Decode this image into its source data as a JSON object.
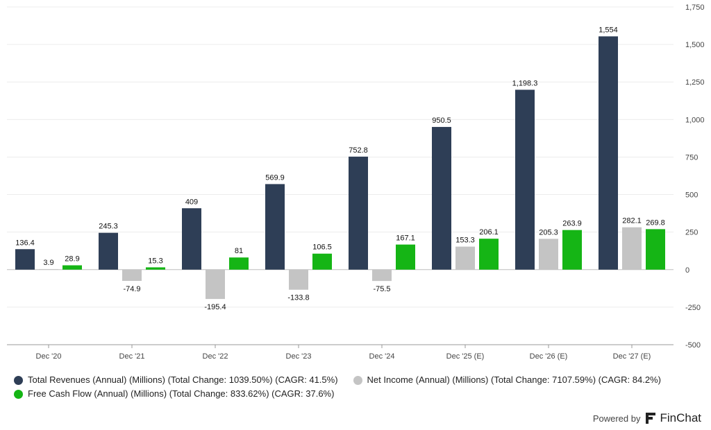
{
  "chart_data": {
    "type": "bar",
    "categories": [
      "Dec '20",
      "Dec '21",
      "Dec '22",
      "Dec '23",
      "Dec '24",
      "Dec '25 (E)",
      "Dec '26 (E)",
      "Dec '27 (E)"
    ],
    "series": [
      {
        "name": "Total Revenues (Annual) (Millions) (Total Change: 1039.50%) (CAGR: 41.5%)",
        "color": "#2e3e56",
        "values": [
          136.4,
          245.3,
          409,
          569.9,
          752.8,
          950.5,
          1198.3,
          1554
        ],
        "labels": [
          "136.4",
          "245.3",
          "409",
          "569.9",
          "752.8",
          "950.5",
          "1,198.3",
          "1,554"
        ]
      },
      {
        "name": "Net Income (Annual) (Millions) (Total Change: 7107.59%) (CAGR: 84.2%)",
        "color": "#c4c4c4",
        "values": [
          3.9,
          -74.9,
          -195.4,
          -133.8,
          -75.5,
          153.3,
          205.3,
          282.1
        ],
        "labels": [
          "3.9",
          "-74.9",
          "-195.4",
          "-133.8",
          "-75.5",
          "153.3",
          "205.3",
          "282.1"
        ]
      },
      {
        "name": "Free Cash Flow (Annual) (Millions) (Total Change: 833.62%) (CAGR: 37.6%)",
        "color": "#15b515",
        "values": [
          28.9,
          15.3,
          81,
          106.5,
          167.1,
          206.1,
          263.9,
          269.8
        ],
        "labels": [
          "28.9",
          "15.3",
          "81",
          "106.5",
          "167.1",
          "206.1",
          "263.9",
          "269.8"
        ]
      }
    ],
    "yaxis": {
      "position": "right",
      "ylim": [
        -500,
        1750
      ],
      "ticks": [
        1750,
        1500,
        1250,
        1000,
        750,
        500,
        250,
        0,
        -250,
        -500
      ],
      "tick_labels": [
        "1,750",
        "1,500",
        "1,250",
        "1,000",
        "750",
        "500",
        "250",
        "0",
        "-250",
        "-500"
      ]
    },
    "grid": true,
    "legend_position": "bottom-left"
  },
  "footer": {
    "powered_by": "Powered by",
    "brand": "FinChat"
  }
}
